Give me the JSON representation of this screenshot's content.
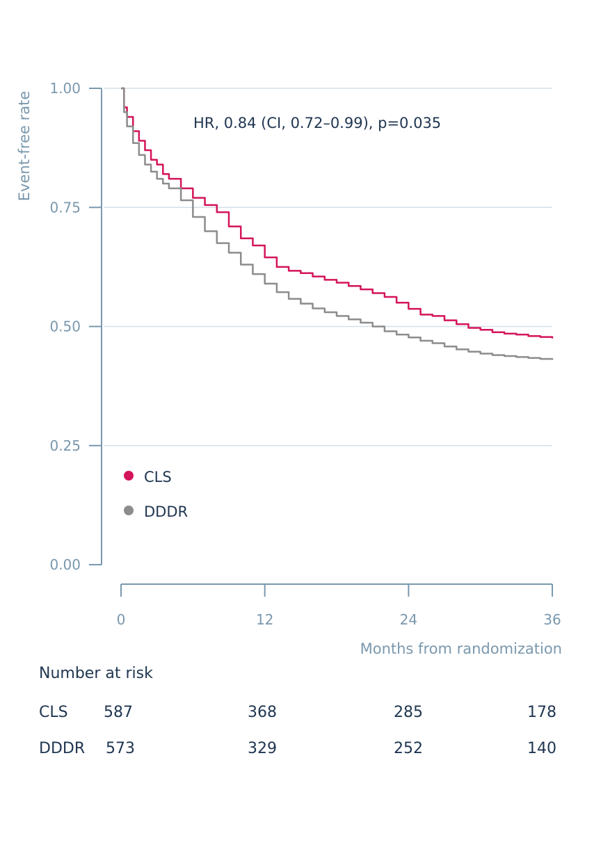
{
  "chart_data": {
    "type": "line",
    "ylabel": "Event-free rate",
    "xlabel": "Months from randomization",
    "annotation": "HR, 0.84 (CI, 0.72–0.99), p=0.035",
    "xlim": [
      0,
      36
    ],
    "ylim": [
      0,
      1
    ],
    "x_ticks": [
      0,
      12,
      24,
      36
    ],
    "x_tick_labels": [
      "0",
      "12",
      "24",
      "36"
    ],
    "y_ticks": [
      0,
      0.25,
      0.5,
      0.75,
      1.0
    ],
    "y_tick_labels": [
      "0.00",
      "0.25",
      "0.50",
      "0.75",
      "1.00"
    ],
    "grid": "horizontal",
    "legend_position": "lower-left",
    "series": [
      {
        "name": "CLS",
        "color": "#d4145a",
        "x": [
          0,
          0.25,
          0.5,
          1,
          1.5,
          2,
          2.5,
          3,
          3.5,
          4,
          5,
          6,
          7,
          8,
          9,
          10,
          11,
          12,
          13,
          14,
          15,
          16,
          17,
          18,
          19,
          20,
          21,
          22,
          23,
          24,
          25,
          26,
          27,
          28,
          29,
          30,
          31,
          32,
          33,
          34,
          35,
          36
        ],
        "values": [
          1.0,
          0.96,
          0.94,
          0.91,
          0.89,
          0.87,
          0.85,
          0.84,
          0.82,
          0.81,
          0.79,
          0.77,
          0.755,
          0.74,
          0.71,
          0.685,
          0.67,
          0.645,
          0.625,
          0.617,
          0.612,
          0.605,
          0.598,
          0.592,
          0.585,
          0.578,
          0.57,
          0.562,
          0.55,
          0.537,
          0.525,
          0.522,
          0.513,
          0.505,
          0.497,
          0.493,
          0.488,
          0.485,
          0.483,
          0.48,
          0.478,
          0.475
        ]
      },
      {
        "name": "DDDR",
        "color": "#8c8c8c",
        "x": [
          0,
          0.25,
          0.5,
          1,
          1.5,
          2,
          2.5,
          3,
          3.5,
          4,
          5,
          6,
          7,
          8,
          9,
          10,
          11,
          12,
          13,
          14,
          15,
          16,
          17,
          18,
          19,
          20,
          21,
          22,
          23,
          24,
          25,
          26,
          27,
          28,
          29,
          30,
          31,
          32,
          33,
          34,
          35,
          36
        ],
        "values": [
          1.0,
          0.95,
          0.92,
          0.885,
          0.86,
          0.84,
          0.825,
          0.81,
          0.8,
          0.79,
          0.765,
          0.73,
          0.7,
          0.675,
          0.655,
          0.63,
          0.61,
          0.59,
          0.572,
          0.558,
          0.548,
          0.538,
          0.53,
          0.522,
          0.515,
          0.508,
          0.5,
          0.49,
          0.483,
          0.477,
          0.47,
          0.465,
          0.458,
          0.452,
          0.447,
          0.443,
          0.44,
          0.438,
          0.436,
          0.434,
          0.432,
          0.43
        ]
      }
    ]
  },
  "risk_table": {
    "title": "Number at risk",
    "rows": [
      {
        "label": "CLS",
        "values": [
          "587",
          "368",
          "285",
          "178"
        ]
      },
      {
        "label": "DDDR",
        "values": [
          "573",
          "329",
          "252",
          "140"
        ]
      }
    ]
  },
  "colors": {
    "axis": "#7a98ae",
    "grid": "#d5dfe7",
    "text_dark": "#1f3550"
  }
}
